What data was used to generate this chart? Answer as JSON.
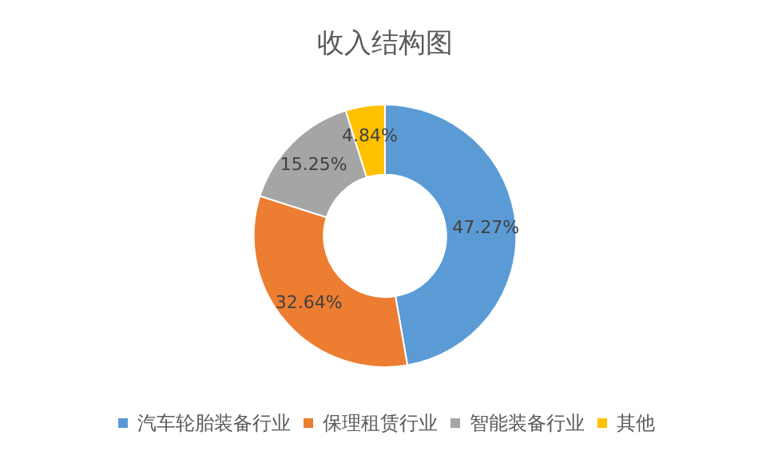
{
  "chart_data": {
    "type": "donut",
    "title": "收入结构图",
    "categories": [
      "汽车轮胎装备行业",
      "保理租赁行业",
      "智能装备行业",
      "其他"
    ],
    "values": [
      47.27,
      32.64,
      15.25,
      4.84
    ],
    "colors": [
      "#5b9bd5",
      "#ed7d31",
      "#a5a5a5",
      "#ffc000"
    ],
    "value_labels": [
      "47.27%",
      "32.64%",
      "15.25%",
      "4.84%"
    ],
    "legend": "bottom"
  }
}
